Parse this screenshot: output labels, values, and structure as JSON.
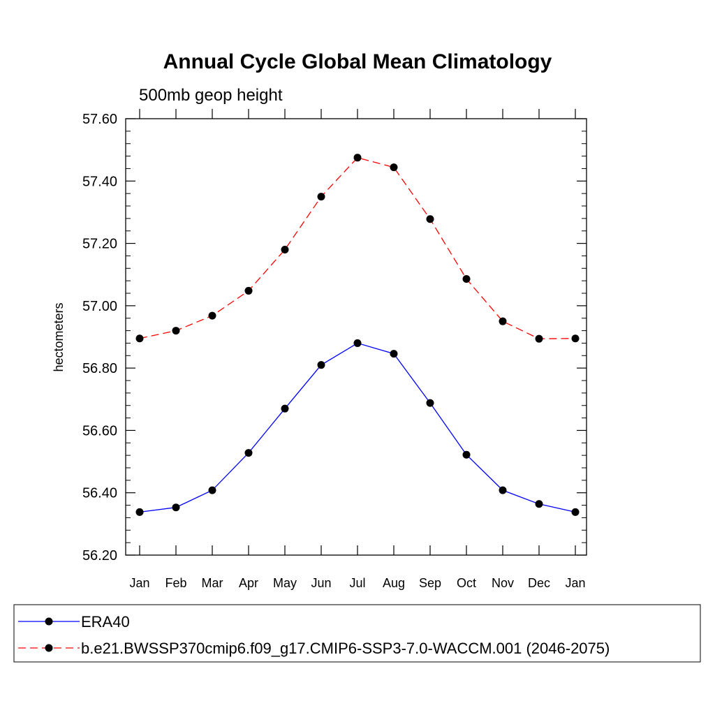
{
  "chart_data": {
    "type": "line",
    "title": "Annual Cycle Global Mean Climatology",
    "subtitle": "500mb geop height",
    "xlabel": "",
    "ylabel": "hectometers",
    "categories": [
      "Jan",
      "Feb",
      "Mar",
      "Apr",
      "May",
      "Jun",
      "Jul",
      "Aug",
      "Sep",
      "Oct",
      "Nov",
      "Dec",
      "Jan"
    ],
    "ylim": [
      56.2,
      57.6
    ],
    "yticks": [
      "56.20",
      "56.40",
      "56.60",
      "56.80",
      "57.00",
      "57.20",
      "57.40",
      "57.60"
    ],
    "grid": false,
    "legend_position": "bottom",
    "series": [
      {
        "name": "ERA40",
        "color": "#0000ff",
        "dash": "solid",
        "values": [
          56.338,
          56.353,
          56.408,
          56.528,
          56.67,
          56.81,
          56.88,
          56.846,
          56.688,
          56.522,
          56.408,
          56.364,
          56.338
        ]
      },
      {
        "name": "b.e21.BWSSP370cmip6.f09_g17.CMIP6-SSP3-7.0-WACCM.001 (2046-2075)",
        "color": "#ff0000",
        "dash": "dashed",
        "values": [
          56.895,
          56.92,
          56.968,
          57.048,
          57.18,
          57.35,
          57.475,
          57.444,
          57.278,
          57.086,
          56.95,
          56.894,
          56.895
        ]
      }
    ]
  }
}
